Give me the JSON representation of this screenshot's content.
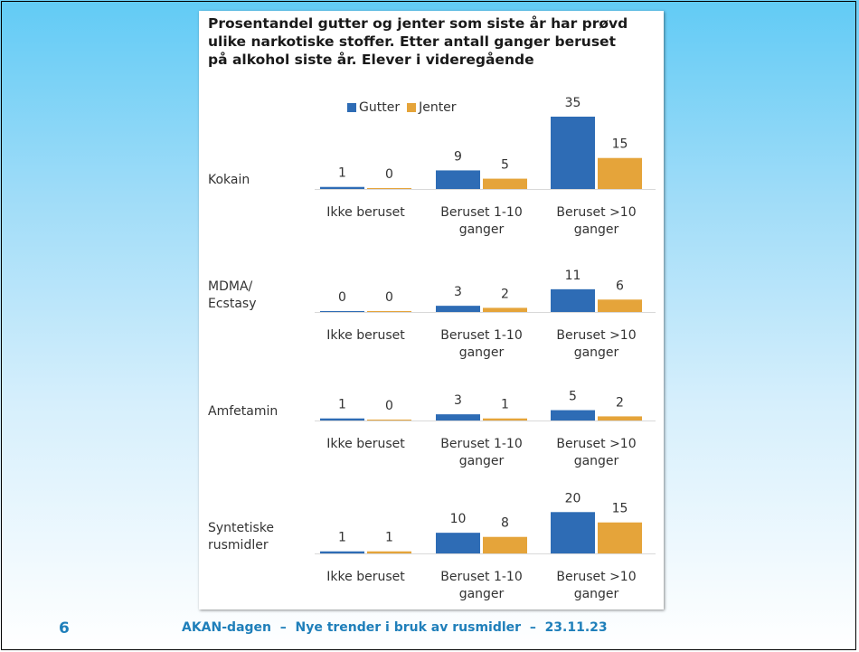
{
  "slide": {
    "page_number": "6",
    "footer": "AKAN-dagen  –  Nye trender i bruk av rusmidler  –  23.11.23"
  },
  "colors": {
    "gutter": "#2e6cb5",
    "jenter": "#e5a43a",
    "axis": "#d9d9d9",
    "text": "#333333"
  },
  "chart_data": {
    "type": "bar",
    "title": "Prosentandel gutter og jenter som siste år har prøvd\nulike narkotiske stoffer. Etter antall ganger beruset\npå alkohol siste år. Elever i videregående",
    "legend_placement": "top-center",
    "categories": [
      "Ikke beruset",
      "Beruset 1-10\nganger",
      "Beruset >10\nganger"
    ],
    "series_names": [
      "Gutter",
      "Jenter"
    ],
    "panels": [
      {
        "label": "Kokain",
        "series": [
          {
            "name": "Gutter",
            "values": [
              1,
              9,
              35
            ]
          },
          {
            "name": "Jenter",
            "values": [
              0,
              5,
              15
            ]
          }
        ]
      },
      {
        "label": "MDMA/\nEcstasy",
        "series": [
          {
            "name": "Gutter",
            "values": [
              0,
              3,
              11
            ]
          },
          {
            "name": "Jenter",
            "values": [
              0,
              2,
              6
            ]
          }
        ]
      },
      {
        "label": "Amfetamin",
        "series": [
          {
            "name": "Gutter",
            "values": [
              1,
              3,
              5
            ]
          },
          {
            "name": "Jenter",
            "values": [
              0,
              1,
              2
            ]
          }
        ]
      },
      {
        "label": "Syntetiske\nrusmidler",
        "series": [
          {
            "name": "Gutter",
            "values": [
              1,
              10,
              20
            ]
          },
          {
            "name": "Jenter",
            "values": [
              1,
              8,
              15
            ]
          }
        ]
      }
    ]
  }
}
